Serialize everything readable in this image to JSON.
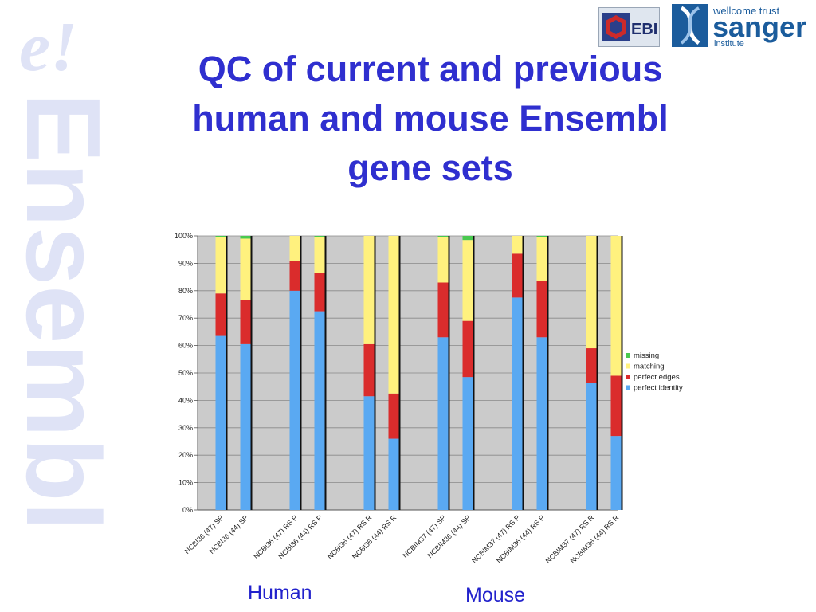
{
  "slide": {
    "title_lines": [
      "QC of current and previous",
      "human and mouse Ensembl",
      "gene sets"
    ],
    "group_labels": [
      "Human",
      "Mouse"
    ]
  },
  "watermark": {
    "mark": "e!",
    "word": "Ensembl"
  },
  "logos": {
    "ebi": "EBI",
    "sanger_top": "wellcome trust",
    "sanger_main": "sanger",
    "sanger_sub": "institute"
  },
  "colors": {
    "title": "#2f2fcf",
    "missing": "#49c94f",
    "matching": "#fff17e",
    "perfect_edges": "#da2c2c",
    "perfect_identity": "#5aa9f2",
    "plot_bg": "#cbcbcb"
  },
  "chart_data": {
    "type": "bar",
    "stacked": true,
    "percent_axis": true,
    "ylim": [
      0,
      100
    ],
    "yticks": [
      "0%",
      "10%",
      "20%",
      "30%",
      "40%",
      "50%",
      "60%",
      "70%",
      "80%",
      "90%",
      "100%"
    ],
    "categories": [
      "NCBI36 (47) SP",
      "NCBI36 (44) SP",
      "NCBI36 (47) RS P",
      "NCBI36 (44) RS P",
      "NCBI36 (47) RS R",
      "NCBI36 (44) RS R",
      "NCBIM37 (47) SP",
      "NCBIM36 (44) SP",
      "NCBIM37 (47) RS P",
      "NCBIM36 (44) RS P",
      "NCBIM37 (47) RS R",
      "NCBIM36 (44) RS R"
    ],
    "series": [
      {
        "name": "perfect identity",
        "values": [
          63.5,
          60.5,
          80,
          72.5,
          41.5,
          26,
          63,
          48.5,
          77.5,
          63,
          46.5,
          27
        ]
      },
      {
        "name": "perfect edges",
        "values": [
          15.5,
          16,
          11,
          14,
          19,
          16.5,
          20,
          20.5,
          16,
          20.5,
          12.5,
          22
        ]
      },
      {
        "name": "matching",
        "values": [
          20.5,
          22.5,
          9,
          13,
          39.5,
          57.5,
          16.5,
          29.5,
          6.5,
          16,
          41,
          51
        ]
      },
      {
        "name": "missing",
        "values": [
          0.5,
          1,
          0,
          0.5,
          0,
          0,
          0.5,
          1.5,
          0,
          0.5,
          0,
          0
        ]
      }
    ],
    "legend_position": "right",
    "legend_order": [
      "missing",
      "matching",
      "perfect edges",
      "perfect identity"
    ],
    "grid": true
  }
}
